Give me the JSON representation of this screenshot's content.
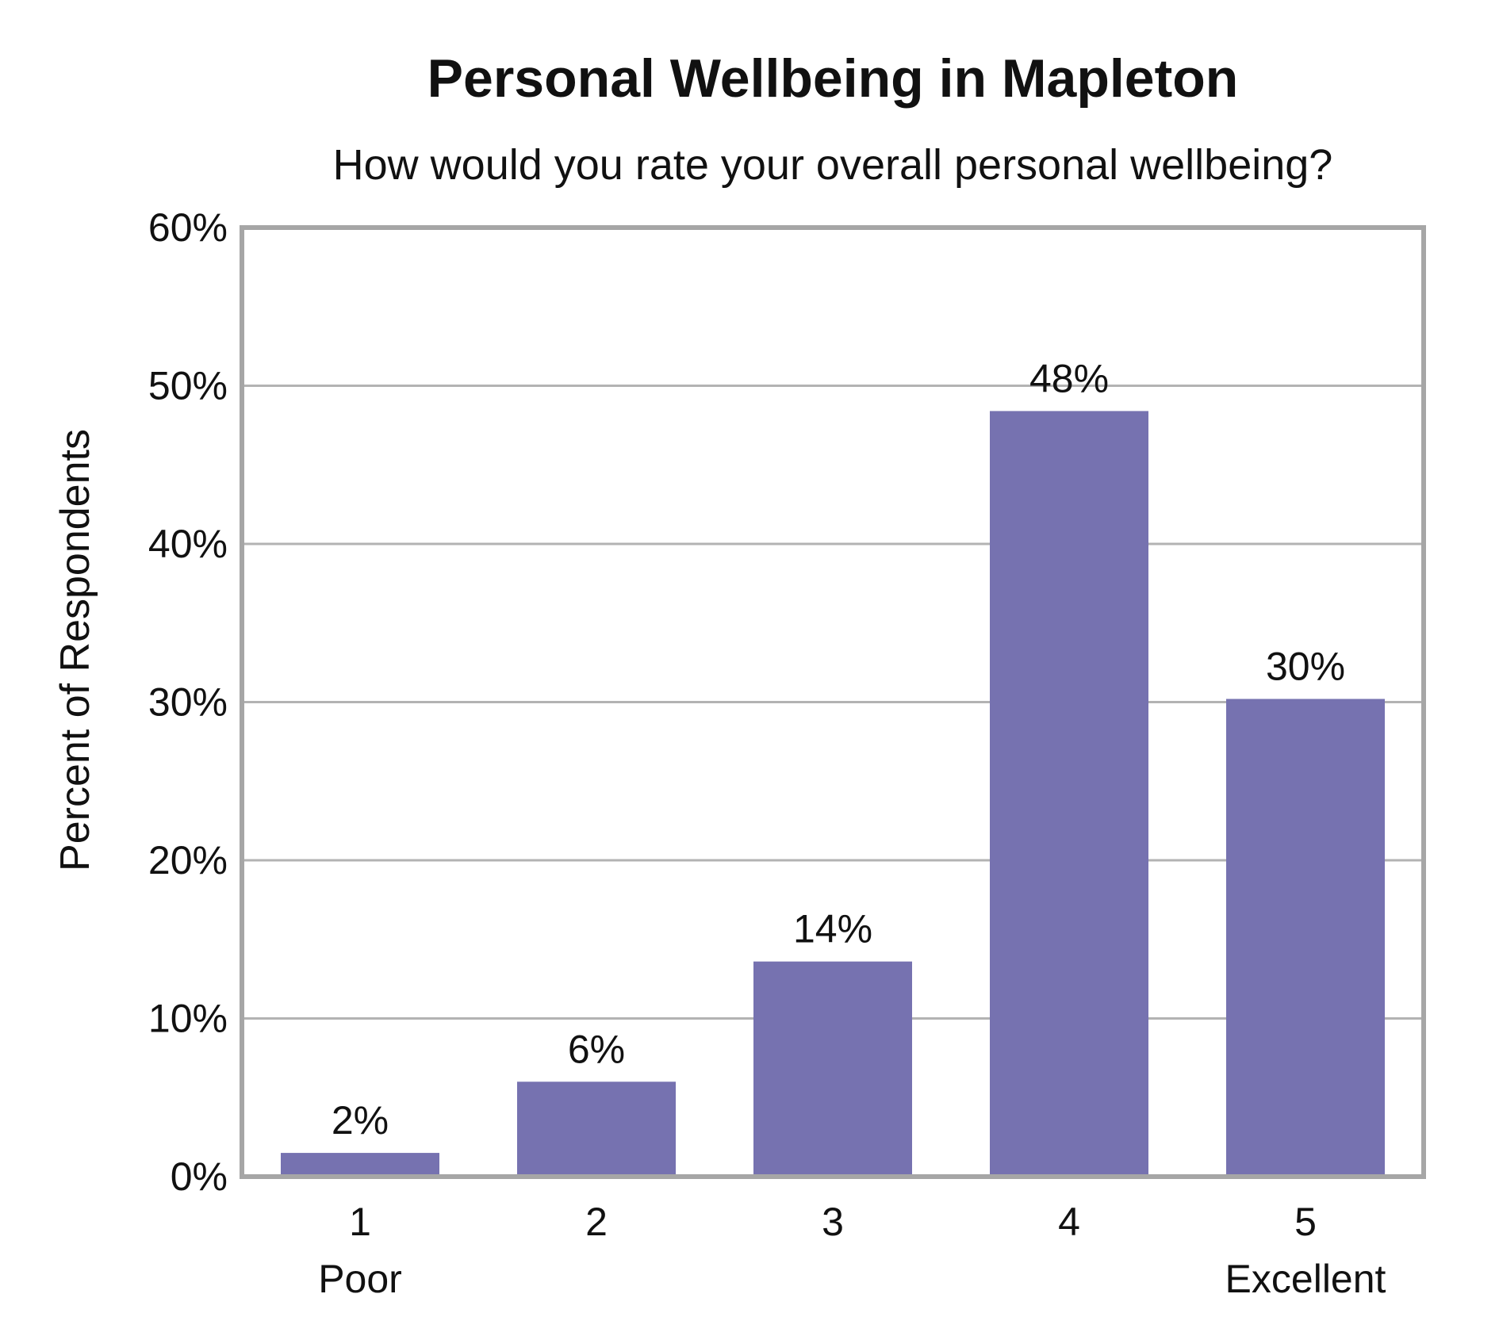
{
  "chart_data": {
    "type": "bar",
    "title": "Personal Wellbeing in Mapleton",
    "subtitle": "How would you rate your overall personal wellbeing?",
    "xlabel": "",
    "ylabel": "Percent of Respondents",
    "categories": [
      "1",
      "2",
      "3",
      "4",
      "5"
    ],
    "category_sublabels": [
      "Poor",
      "",
      "",
      "",
      "Excellent"
    ],
    "values": [
      1.5,
      6,
      13.6,
      48.4,
      30.2
    ],
    "data_labels": [
      "2%",
      "6%",
      "14%",
      "48%",
      "30%"
    ],
    "ylim": [
      0,
      60
    ],
    "y_ticks": [
      0,
      10,
      20,
      30,
      40,
      50,
      60
    ],
    "y_tick_labels": [
      "0%",
      "10%",
      "20%",
      "30%",
      "40%",
      "50%",
      "60%"
    ],
    "grid": true,
    "legend": "none",
    "colors": {
      "bar": "#7672b0",
      "grid": "#b3b3b3",
      "frame": "#a6a6a6"
    }
  }
}
